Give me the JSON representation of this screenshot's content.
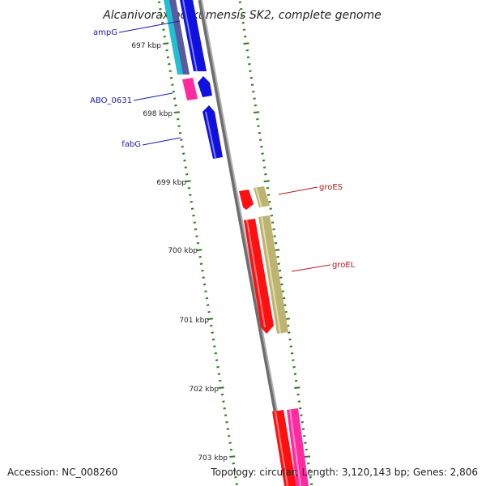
{
  "title": "Alcanivorax borkumensis SK2, complete genome",
  "footer": {
    "accession": "Accession: NC_008260",
    "summary": "Topology: circular; Length: 3,120,143 bp; Genes: 2,806"
  },
  "ticks": [
    "697 kbp",
    "698 kbp",
    "699 kbp",
    "700 kbp",
    "701 kbp",
    "702 kbp",
    "703 kbp"
  ],
  "gene_labels": {
    "left": [
      "ampG",
      "ABO_0631",
      "fabG"
    ],
    "right": [
      "groES",
      "groEL"
    ]
  },
  "colors": {
    "backbone": "#8a8a8a",
    "tick": "#2e7d1e",
    "blue_gene": "#1010e0",
    "cyan_gene": "#20c0d0",
    "magenta_gene": "#ff2aa0",
    "red_gene": "#ff1010",
    "khaki_gene": "#bdb472",
    "left_label": "#1a1ab8",
    "right_label": "#b81a1a"
  }
}
